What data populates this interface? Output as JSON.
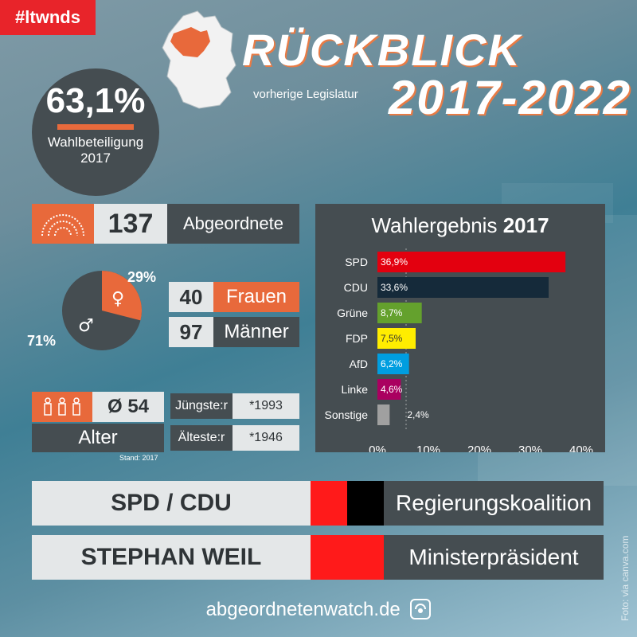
{
  "hashtag": "#ltwnds",
  "title": "RÜCKBLICK",
  "subtitle": "vorherige Legislatur",
  "period": "2017-2022",
  "turnout": {
    "value": "63,1%",
    "label": "Wahlbeteiligung",
    "year": "2017"
  },
  "seats": {
    "value": "137",
    "label": "Abgeordnete",
    "icon": "parliament-icon"
  },
  "gender": {
    "female_pct_label": "29%",
    "male_pct_label": "71%",
    "female_share": 0.29,
    "female_count": "40",
    "female_label": "Frauen",
    "male_count": "97",
    "male_label": "Männer",
    "female_symbol": "♀",
    "male_symbol": "♂"
  },
  "age": {
    "avg_value": "Ø 54",
    "label": "Alter",
    "stand": "Stand: 2017",
    "youngest_label": "Jüngste:r",
    "youngest_value": "*1993",
    "oldest_label": "Älteste:r",
    "oldest_value": "*1946",
    "icon": "people-icon"
  },
  "coalition": {
    "parties": "SPD / CDU",
    "label": "Regierungskoalition",
    "colors": [
      "#ff1a1a",
      "#000000"
    ]
  },
  "minister": {
    "name": "STEPHAN WEIL",
    "label": "Ministerpräsident",
    "color": "#ff1a1a"
  },
  "footer": {
    "site": "abgeordnetenwatch.de",
    "credit": "Foto: via canva.com"
  },
  "colors": {
    "accent": "#e8693b",
    "dark": "#454d51",
    "light": "#e4e7e8"
  },
  "chart_data": {
    "type": "bar",
    "title_prefix": "Wahlergebnis",
    "title_year": "2017",
    "categories": [
      "SPD",
      "CDU",
      "Grüne",
      "FDP",
      "AfD",
      "Linke",
      "Sonstige"
    ],
    "values": [
      36.9,
      33.6,
      8.7,
      7.5,
      6.2,
      4.6,
      2.4
    ],
    "value_labels": [
      "36,9%",
      "33,6%",
      "8,7%",
      "7,5%",
      "6,2%",
      "4,6%",
      "2,4%"
    ],
    "colors": [
      "#e3000f",
      "#152a3a",
      "#64a12d",
      "#ffed00",
      "#009ee0",
      "#aa0060",
      "#a0a0a0"
    ],
    "label_colors": [
      "#ffffff",
      "#ffffff",
      "#ffffff",
      "#333333",
      "#ffffff",
      "#ffffff",
      "#ffffff"
    ],
    "xlim": [
      0,
      40
    ],
    "ticks": [
      "0%",
      "10%",
      "20%",
      "30%",
      "40%"
    ],
    "orientation": "horizontal"
  }
}
